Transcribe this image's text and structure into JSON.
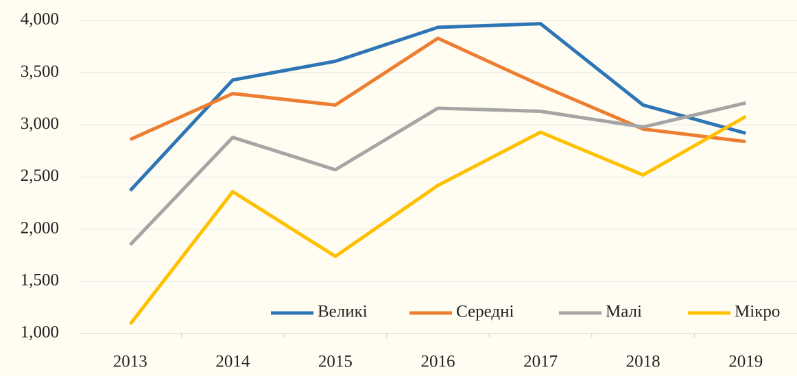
{
  "chart_data": {
    "type": "line",
    "categories": [
      "2013",
      "2014",
      "2015",
      "2016",
      "2017",
      "2018",
      "2019"
    ],
    "series": [
      {
        "name": "Великі",
        "color": "#2e75b6",
        "values": [
          2370,
          3430,
          3610,
          3935,
          3970,
          3190,
          2920
        ]
      },
      {
        "name": "Середні",
        "color": "#ed7d31",
        "values": [
          2860,
          3300,
          3190,
          3830,
          3380,
          2960,
          2840
        ]
      },
      {
        "name": "Малі",
        "color": "#a5a5a5",
        "values": [
          1850,
          2880,
          2570,
          3160,
          3130,
          2980,
          3210
        ]
      },
      {
        "name": "Мікро",
        "color": "#ffc000",
        "values": [
          1090,
          2360,
          1740,
          2420,
          2930,
          2520,
          3080
        ]
      }
    ],
    "ylim": [
      1000,
      4000
    ],
    "yticks": [
      {
        "value": 1000,
        "label": "1,000"
      },
      {
        "value": 1500,
        "label": "1,500"
      },
      {
        "value": 2000,
        "label": "2,000"
      },
      {
        "value": 2500,
        "label": "2,500"
      },
      {
        "value": 3000,
        "label": "3,000"
      },
      {
        "value": 3500,
        "label": "3,500"
      },
      {
        "value": 4000,
        "label": "4,000"
      }
    ],
    "grid": true,
    "legend": "lower right"
  }
}
